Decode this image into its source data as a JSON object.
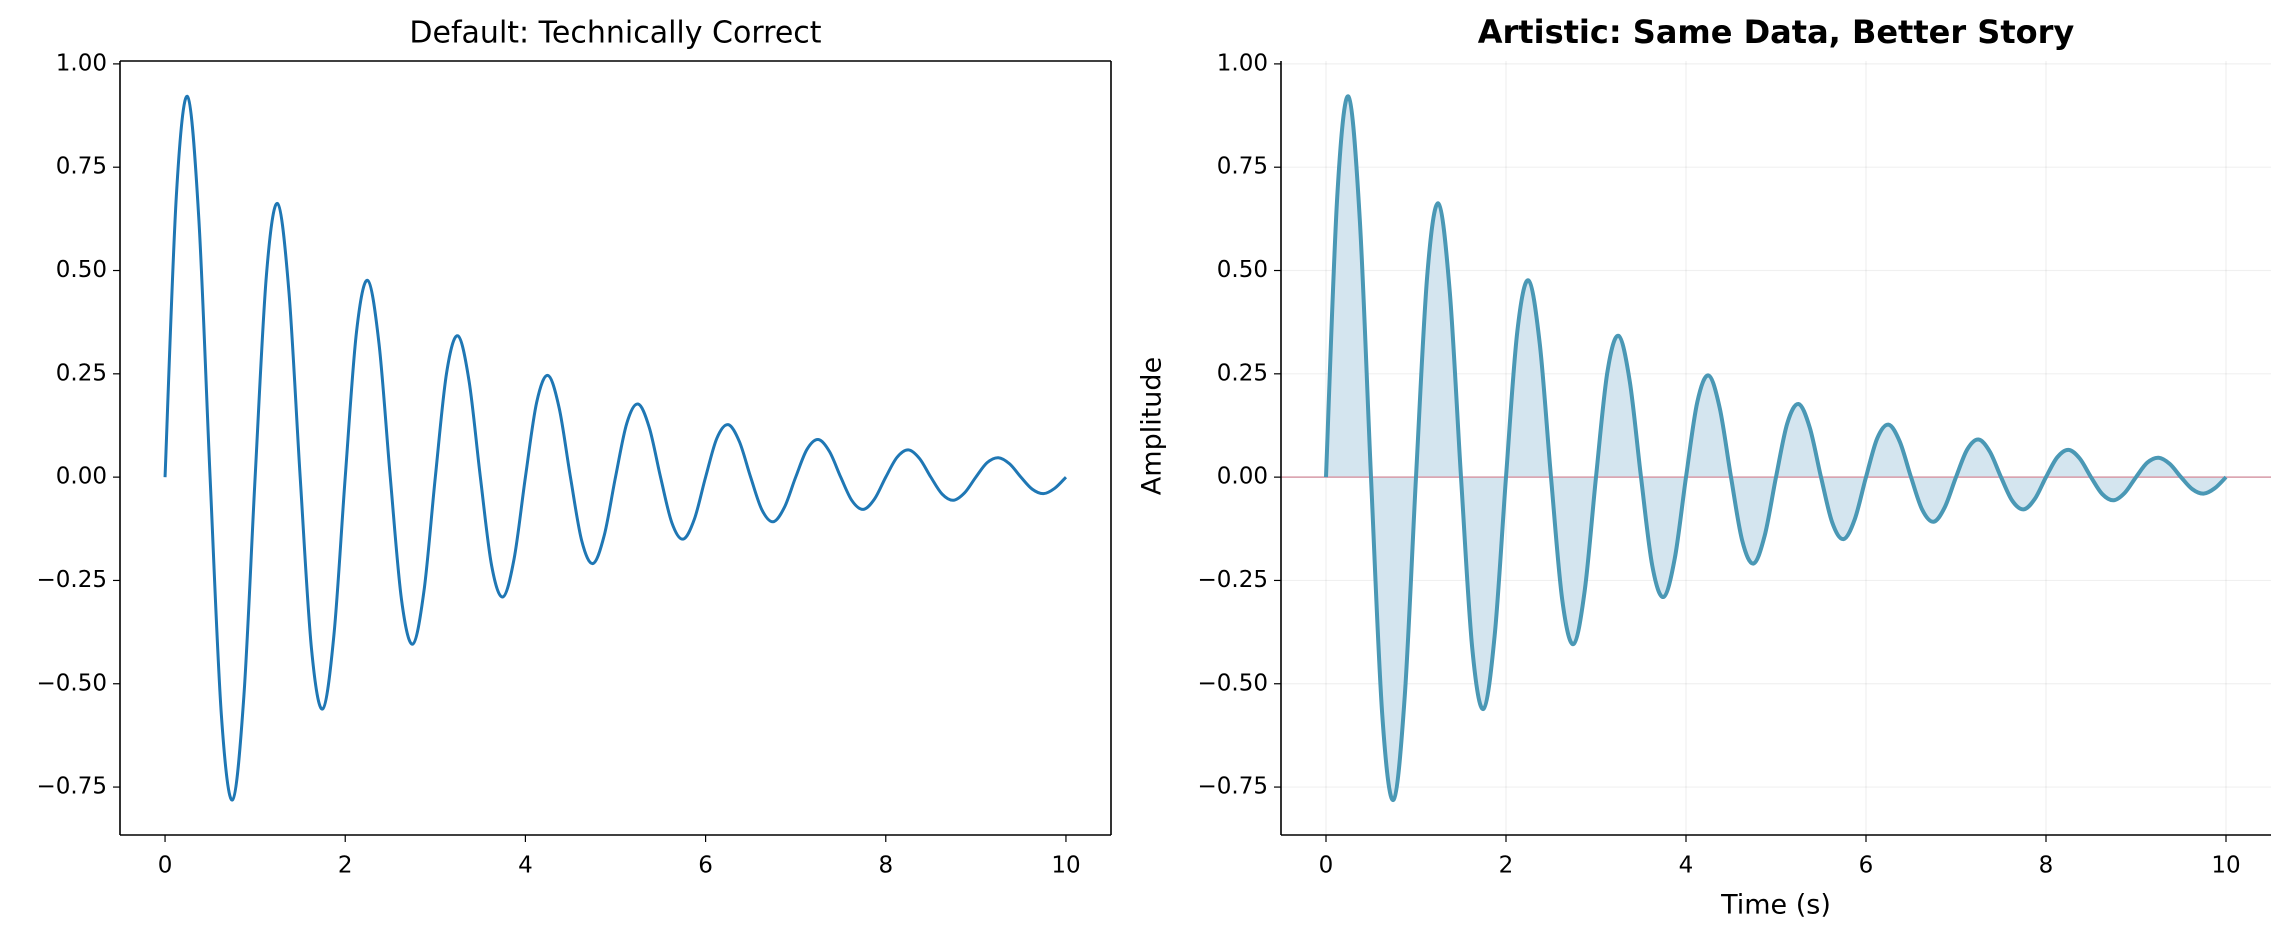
{
  "chart_data": [
    {
      "type": "line",
      "title": "Default: Technically Correct",
      "title_weight": "normal",
      "spines": [
        "left",
        "bottom",
        "top",
        "right"
      ],
      "grid": false,
      "fill": false,
      "x": [
        0,
        0.125,
        0.25,
        0.375,
        0.5,
        0.625,
        0.75,
        0.875,
        1,
        1.125,
        1.25,
        1.375,
        1.5,
        1.625,
        1.75,
        1.875,
        2,
        2.125,
        2.25,
        2.375,
        2.5,
        2.625,
        2.75,
        2.875,
        3,
        3.125,
        3.25,
        3.375,
        3.5,
        3.625,
        3.75,
        3.875,
        4,
        4.125,
        4.25,
        4.375,
        4.5,
        4.625,
        4.75,
        4.875,
        5,
        5.125,
        5.25,
        5.375,
        5.5,
        5.625,
        5.75,
        5.875,
        6,
        6.125,
        6.25,
        6.375,
        6.5,
        6.625,
        6.75,
        6.875,
        7,
        7.125,
        7.25,
        7.375,
        7.5,
        7.625,
        7.75,
        7.875,
        8,
        8.125,
        8.25,
        8.375,
        8.5,
        8.625,
        8.75,
        8.875,
        9,
        9.125,
        9.25,
        9.375,
        9.5,
        9.625,
        9.75,
        9.875,
        10
      ],
      "series": [
        {
          "color": "#1f77b4",
          "values": [
            0,
            0.679,
            0.921,
            0.625,
            0,
            -0.575,
            -0.781,
            -0.53,
            0,
            0.488,
            0.662,
            0.449,
            0,
            -0.414,
            -0.561,
            -0.381,
            0,
            0.351,
            0.476,
            0.323,
            0,
            -0.297,
            -0.404,
            -0.274,
            0,
            0.252,
            0.342,
            0.232,
            0,
            -0.214,
            -0.29,
            -0.197,
            0,
            0.181,
            0.246,
            0.167,
            0,
            -0.154,
            -0.209,
            -0.141,
            0,
            0.13,
            0.177,
            0.12,
            0,
            -0.11,
            -0.15,
            -0.102,
            0,
            0.094,
            0.127,
            0.086,
            0,
            -0.079,
            -0.108,
            -0.073,
            0,
            0.067,
            0.091,
            0.062,
            0,
            -0.057,
            -0.078,
            -0.053,
            0,
            0.048,
            0.066,
            0.045,
            0,
            -0.041,
            -0.056,
            -0.038,
            0,
            0.035,
            0.047,
            0.032,
            0,
            -0.029,
            -0.04,
            -0.027,
            0
          ]
        }
      ],
      "xlim": [
        -0.5,
        10.5
      ],
      "xticks": [
        0,
        2,
        4,
        6,
        8,
        10
      ],
      "ylim": [
        -0.866,
        1.007
      ],
      "yticks": [
        {
          "value": -0.75,
          "label": "−0.75"
        },
        {
          "value": -0.5,
          "label": "−0.50"
        },
        {
          "value": -0.25,
          "label": "−0.25"
        },
        {
          "value": 0,
          "label": "0.00"
        },
        {
          "value": 0.25,
          "label": "0.25"
        },
        {
          "value": 0.5,
          "label": "0.50"
        },
        {
          "value": 0.75,
          "label": "0.75"
        },
        {
          "value": 1,
          "label": "1.00"
        }
      ]
    },
    {
      "type": "line",
      "title": "Artistic: Same Data, Better Story",
      "title_weight": "bold",
      "xlabel": "Time (s)",
      "ylabel": "Amplitude",
      "spines": [
        "left",
        "bottom"
      ],
      "grid": true,
      "fill": true,
      "fill_color": "#d4e5ef",
      "reference_line": {
        "value": 0,
        "color": "#d79aa8"
      },
      "x": [
        0,
        0.125,
        0.25,
        0.375,
        0.5,
        0.625,
        0.75,
        0.875,
        1,
        1.125,
        1.25,
        1.375,
        1.5,
        1.625,
        1.75,
        1.875,
        2,
        2.125,
        2.25,
        2.375,
        2.5,
        2.625,
        2.75,
        2.875,
        3,
        3.125,
        3.25,
        3.375,
        3.5,
        3.625,
        3.75,
        3.875,
        4,
        4.125,
        4.25,
        4.375,
        4.5,
        4.625,
        4.75,
        4.875,
        5,
        5.125,
        5.25,
        5.375,
        5.5,
        5.625,
        5.75,
        5.875,
        6,
        6.125,
        6.25,
        6.375,
        6.5,
        6.625,
        6.75,
        6.875,
        7,
        7.125,
        7.25,
        7.375,
        7.5,
        7.625,
        7.75,
        7.875,
        8,
        8.125,
        8.25,
        8.375,
        8.5,
        8.625,
        8.75,
        8.875,
        9,
        9.125,
        9.25,
        9.375,
        9.5,
        9.625,
        9.75,
        9.875,
        10
      ],
      "series": [
        {
          "color": "#4a98b5",
          "values": [
            0,
            0.679,
            0.921,
            0.625,
            0,
            -0.575,
            -0.781,
            -0.53,
            0,
            0.488,
            0.662,
            0.449,
            0,
            -0.414,
            -0.561,
            -0.381,
            0,
            0.351,
            0.476,
            0.323,
            0,
            -0.297,
            -0.404,
            -0.274,
            0,
            0.252,
            0.342,
            0.232,
            0,
            -0.214,
            -0.29,
            -0.197,
            0,
            0.181,
            0.246,
            0.167,
            0,
            -0.154,
            -0.209,
            -0.141,
            0,
            0.13,
            0.177,
            0.12,
            0,
            -0.11,
            -0.15,
            -0.102,
            0,
            0.094,
            0.127,
            0.086,
            0,
            -0.079,
            -0.108,
            -0.073,
            0,
            0.067,
            0.091,
            0.062,
            0,
            -0.057,
            -0.078,
            -0.053,
            0,
            0.048,
            0.066,
            0.045,
            0,
            -0.041,
            -0.056,
            -0.038,
            0,
            0.035,
            0.047,
            0.032,
            0,
            -0.029,
            -0.04,
            -0.027,
            0
          ]
        }
      ],
      "xlim": [
        -0.5,
        10.5
      ],
      "xticks": [
        0,
        2,
        4,
        6,
        8,
        10
      ],
      "ylim": [
        -0.866,
        1.007
      ],
      "yticks": [
        {
          "value": -0.75,
          "label": "−0.75"
        },
        {
          "value": -0.5,
          "label": "−0.50"
        },
        {
          "value": -0.25,
          "label": "−0.25"
        },
        {
          "value": 0,
          "label": "0.00"
        },
        {
          "value": 0.25,
          "label": "0.25"
        },
        {
          "value": 0.5,
          "label": "0.50"
        },
        {
          "value": 0.75,
          "label": "0.75"
        },
        {
          "value": 1,
          "label": "1.00"
        }
      ]
    }
  ]
}
